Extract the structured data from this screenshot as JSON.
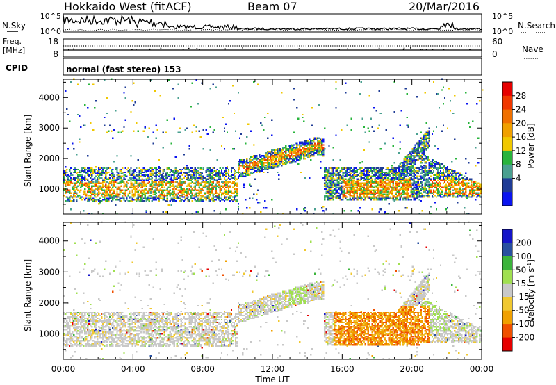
{
  "header": {
    "title": "Hokkaido West (fitACF)",
    "beam": "Beam 07",
    "date": "20/Mar/2016"
  },
  "top_panel": {
    "nsky": {
      "label": "N.Sky",
      "ticks": [
        "10^5",
        "10^0"
      ]
    },
    "nsearch": {
      "label": "N.Search",
      "ticks": [
        "10^5",
        "10^0"
      ]
    },
    "freq": {
      "label_line1": "Freq.",
      "label_line2": "[MHz]",
      "ticks": [
        "18",
        "8"
      ]
    },
    "nave": {
      "label": "Nave",
      "ticks": [
        "60",
        "0"
      ]
    },
    "cpid": {
      "label": "CPID",
      "text": "normal (fast stereo) 153"
    }
  },
  "colors": {
    "power": [
      "#0a14f0",
      "#1f3c96",
      "#4aa090",
      "#28b43c",
      "#f0c800",
      "#f0a000",
      "#f07000",
      "#f03800",
      "#e60000"
    ],
    "velocity": [
      "#e60000",
      "#f05000",
      "#f0a000",
      "#f0c830",
      "#c8c8c8",
      "#a0e050",
      "#3cb43c",
      "#2850a0",
      "#1414c8"
    ]
  },
  "chart_data": [
    {
      "type": "heatmap",
      "name": "power",
      "ylabel": "Slant Range [km]",
      "xlabel": "",
      "ylim": [
        180,
        4600
      ],
      "yticks": [
        1000,
        2000,
        3000,
        4000
      ],
      "ytick_labels": [
        "1000",
        "2000",
        "3000",
        "4000"
      ],
      "colorbar": {
        "label": "Power [dB]",
        "ticks": [
          "28",
          "24",
          "20",
          "16",
          "12",
          "8",
          "4"
        ]
      }
    },
    {
      "type": "heatmap",
      "name": "velocity",
      "ylabel": "Slant Range [km]",
      "xlabel": "Time UT",
      "ylim": [
        180,
        4600
      ],
      "yticks": [
        1000,
        2000,
        3000,
        4000
      ],
      "ytick_labels": [
        "1000",
        "2000",
        "3000",
        "4000"
      ],
      "xticks": [
        "00:00",
        "04:00",
        "08:00",
        "12:00",
        "16:00",
        "20:00",
        "00:00"
      ],
      "colorbar": {
        "label": "Velocity [m s^-1]",
        "ticks": [
          "200",
          "100",
          "50",
          "15",
          "-15",
          "-50",
          "-100",
          "-200"
        ]
      }
    }
  ]
}
